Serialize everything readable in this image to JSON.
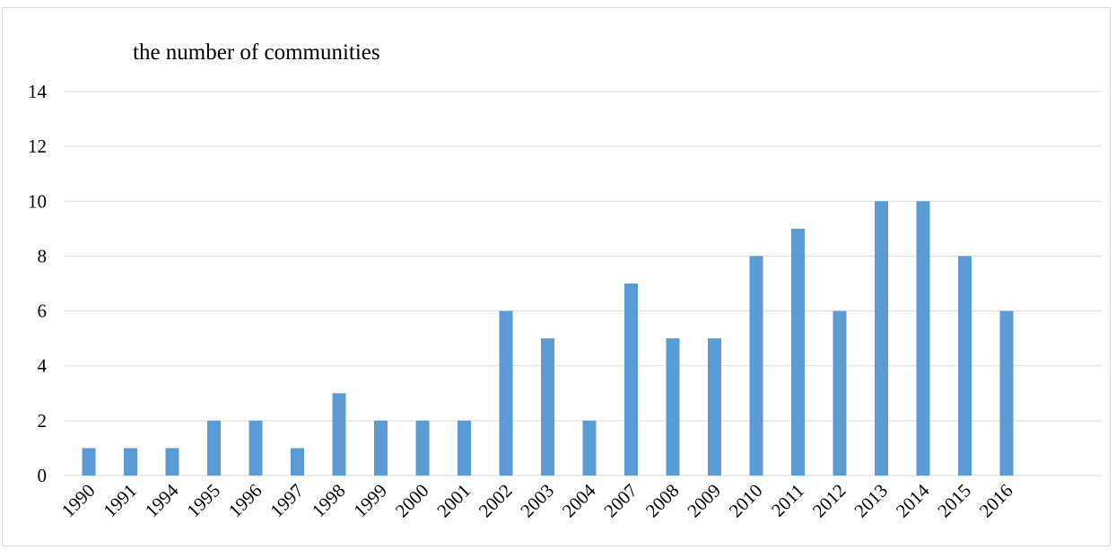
{
  "chart_data": {
    "type": "bar",
    "title": "the number of communities",
    "xlabel": "",
    "ylabel": "",
    "categories": [
      "1990",
      "1991",
      "1994",
      "1995",
      "1996",
      "1997",
      "1998",
      "1999",
      "2000",
      "2001",
      "2002",
      "2003",
      "2004",
      "2007",
      "2008",
      "2009",
      "2010",
      "2011",
      "2012",
      "2013",
      "2014",
      "2015",
      "2016"
    ],
    "values": [
      1,
      1,
      1,
      2,
      2,
      1,
      3,
      2,
      2,
      2,
      6,
      5,
      2,
      7,
      5,
      5,
      8,
      9,
      6,
      10,
      10,
      8,
      6
    ],
    "ylim": [
      0,
      14
    ],
    "yticks": [
      0,
      2,
      4,
      6,
      8,
      10,
      12,
      14
    ],
    "grid": "horizontal",
    "legend": "none",
    "bar_color": "#5b9bd5",
    "grid_color": "#d9d9d9"
  }
}
